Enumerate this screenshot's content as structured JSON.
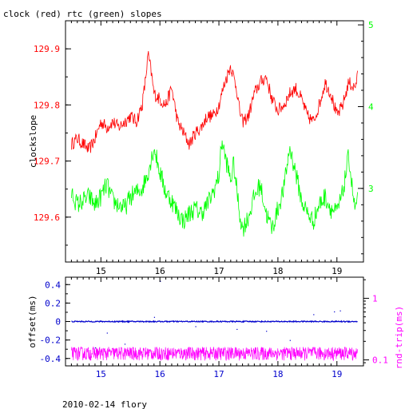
{
  "figure": {
    "title": "clock (red) rtc (green) slopes",
    "footer": "2010-02-14 flory"
  },
  "colors": {
    "red": "#ff0000",
    "green": "#00ff00",
    "blue": "#0000cc",
    "magenta": "#ff00ff",
    "axis": "#000000"
  },
  "chart_data": [
    {
      "type": "line",
      "title": "clock (red) rtc (green) slopes",
      "xlabel": "",
      "xlim": [
        14.4,
        19.45
      ],
      "xticks": [
        "15",
        "16",
        "17",
        "18",
        "19"
      ],
      "ylabel": "clockslope",
      "ylim": [
        129.52,
        129.95
      ],
      "yticks": [
        "129.6",
        "129.7",
        "129.8",
        "129.9"
      ],
      "y2lim": [
        2.1,
        5.05
      ],
      "y2ticks": [
        "3",
        "4",
        "5"
      ],
      "series": [
        {
          "color": "red",
          "axis": "left",
          "x": [
            14.5,
            14.6,
            14.7,
            14.8,
            14.9,
            15.0,
            15.1,
            15.2,
            15.3,
            15.4,
            15.5,
            15.6,
            15.7,
            15.75,
            15.8,
            15.85,
            15.9,
            16.0,
            16.1,
            16.2,
            16.3,
            16.4,
            16.5,
            16.6,
            16.7,
            16.8,
            16.9,
            17.0,
            17.1,
            17.2,
            17.25,
            17.3,
            17.35,
            17.4,
            17.5,
            17.6,
            17.7,
            17.8,
            17.9,
            18.0,
            18.1,
            18.2,
            18.3,
            18.4,
            18.5,
            18.6,
            18.7,
            18.8,
            18.9,
            19.0,
            19.1,
            19.2,
            19.3,
            19.35
          ],
          "values": [
            129.73,
            129.74,
            129.73,
            129.72,
            129.74,
            129.77,
            129.76,
            129.77,
            129.76,
            129.77,
            129.78,
            129.77,
            129.8,
            129.84,
            129.89,
            129.86,
            129.82,
            129.81,
            129.8,
            129.83,
            129.77,
            129.75,
            129.73,
            129.75,
            129.76,
            129.78,
            129.78,
            129.8,
            129.84,
            129.87,
            129.85,
            129.83,
            129.79,
            129.77,
            129.78,
            129.82,
            129.84,
            129.85,
            129.81,
            129.79,
            129.8,
            129.82,
            129.83,
            129.81,
            129.78,
            129.77,
            129.8,
            129.84,
            129.82,
            129.78,
            129.8,
            129.84,
            129.83,
            129.85
          ]
        },
        {
          "color": "green",
          "axis": "right",
          "x": [
            14.5,
            14.6,
            14.7,
            14.8,
            14.9,
            15.0,
            15.1,
            15.2,
            15.3,
            15.4,
            15.5,
            15.6,
            15.7,
            15.8,
            15.9,
            16.0,
            16.1,
            16.2,
            16.3,
            16.4,
            16.5,
            16.6,
            16.7,
            16.8,
            16.9,
            17.0,
            17.05,
            17.1,
            17.2,
            17.25,
            17.3,
            17.35,
            17.4,
            17.5,
            17.6,
            17.7,
            17.8,
            17.9,
            18.0,
            18.1,
            18.2,
            18.3,
            18.4,
            18.5,
            18.6,
            18.7,
            18.8,
            18.9,
            19.0,
            19.1,
            19.2,
            19.3,
            19.35
          ],
          "values": [
            2.95,
            2.8,
            2.85,
            2.9,
            2.8,
            2.9,
            3.05,
            2.85,
            2.8,
            2.75,
            2.9,
            2.95,
            3.0,
            3.2,
            3.5,
            3.2,
            2.95,
            2.85,
            2.7,
            2.6,
            2.7,
            2.75,
            2.7,
            2.8,
            2.95,
            3.15,
            3.6,
            3.4,
            3.1,
            3.3,
            3.0,
            2.7,
            2.5,
            2.65,
            2.9,
            3.05,
            2.7,
            2.5,
            2.75,
            3.0,
            3.5,
            3.2,
            2.85,
            2.7,
            2.6,
            2.8,
            2.9,
            2.75,
            2.7,
            2.95,
            3.4,
            2.75,
            2.85
          ]
        }
      ]
    },
    {
      "type": "scatter",
      "xlim": [
        14.4,
        19.45
      ],
      "xticks": [
        "15",
        "16",
        "17",
        "18",
        "19"
      ],
      "ylabel": "offset(ms)",
      "ylim": [
        -0.48,
        0.48
      ],
      "yticks": [
        "0.4",
        "0.2",
        "0",
        "-0.2",
        "-0.4"
      ],
      "y2label": "rnd-trip(ms)",
      "y2scale": "log",
      "y2lim": [
        0.08,
        2.2
      ],
      "y2ticks": [
        "1",
        "0.1"
      ],
      "series": [
        {
          "color": "blue",
          "axis": "left",
          "x": [
            14.5,
            19.35
          ],
          "values": [
            0.0,
            0.0
          ]
        },
        {
          "color": "magenta",
          "axis": "right",
          "x": [
            14.5,
            19.35
          ],
          "values": [
            0.13,
            0.13
          ]
        }
      ]
    }
  ]
}
